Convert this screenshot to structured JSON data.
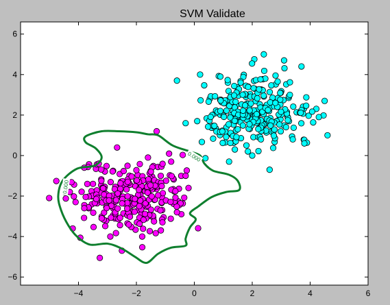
{
  "chart_data": {
    "type": "scatter",
    "title": "SVM Validate",
    "xlabel": "",
    "ylabel": "",
    "xlim": [
      -6,
      6
    ],
    "ylim": [
      -6.4,
      6.6
    ],
    "x_ticks": [
      -4,
      -2,
      0,
      2,
      4,
      6
    ],
    "y_ticks": [
      -6,
      -4,
      -2,
      0,
      2,
      4,
      6
    ],
    "x_tick_labels": [
      "−4",
      "−2",
      "0",
      "2",
      "4",
      "6"
    ],
    "y_tick_labels": [
      "−6",
      "−4",
      "−2",
      "0",
      "2",
      "4",
      "6"
    ],
    "grid": false,
    "legend": false,
    "colors": {
      "figure_background": "#bfbfbf",
      "axes_background": "#ffffff",
      "class_a": "#ff00ff",
      "class_b": "#00ffff",
      "marker_edge": "#000000",
      "boundary": "#0f7f2e"
    },
    "series": [
      {
        "color": "#00ffff",
        "cluster": {
          "center": [
            2.1,
            2.2
          ],
          "spread": [
            0.95,
            0.85
          ],
          "n": 260
        },
        "points": [
          [
            2.4,
            5.0
          ],
          [
            3.1,
            4.7
          ],
          [
            3.7,
            4.4
          ],
          [
            -0.6,
            3.7
          ],
          [
            0.2,
            4.0
          ],
          [
            0.9,
            3.9
          ],
          [
            1.6,
            3.6
          ],
          [
            4.5,
            2.7
          ],
          [
            4.3,
            1.9
          ],
          [
            4.6,
            1.0
          ],
          [
            -0.3,
            1.6
          ],
          [
            0.1,
            1.7
          ],
          [
            1.2,
            -0.3
          ],
          [
            1.4,
            0.3
          ],
          [
            1.8,
            0.5
          ],
          [
            2.0,
            0.0
          ],
          [
            2.6,
            -0.7
          ],
          [
            2.3,
            0.8
          ],
          [
            3.4,
            0.8
          ],
          [
            3.8,
            0.6
          ],
          [
            0.9,
            2.2
          ],
          [
            1.5,
            1.3
          ],
          [
            2.8,
            2.6
          ],
          [
            3.3,
            3.0
          ]
        ]
      },
      {
        "color": "#ff00ff",
        "cluster": {
          "center": [
            -2.1,
            -2.1
          ],
          "spread": [
            0.95,
            0.85
          ],
          "n": 260
        },
        "points": [
          [
            -1.3,
            1.2
          ],
          [
            -0.8,
            -0.3
          ],
          [
            -0.3,
            -1.0
          ],
          [
            -3.8,
            -0.6
          ],
          [
            -3.3,
            -0.4
          ],
          [
            -4.3,
            -1.8
          ],
          [
            -4.1,
            -2.3
          ],
          [
            -4.2,
            -3.6
          ],
          [
            -3.8,
            -2.6
          ],
          [
            -3.2,
            -3.1
          ],
          [
            -2.5,
            -4.7
          ],
          [
            -1.8,
            -4.0
          ],
          [
            -2.9,
            -4.0
          ],
          [
            -1.1,
            -3.3
          ],
          [
            -0.6,
            -2.8
          ],
          [
            -1.5,
            -0.8
          ],
          [
            -2.3,
            -1.3
          ],
          [
            -1.9,
            -2.5
          ],
          [
            -2.7,
            -2.2
          ],
          [
            -0.2,
            -1.6
          ],
          [
            -3.5,
            -1.4
          ],
          [
            -1.6,
            -0.1
          ]
        ]
      }
    ],
    "decision_boundary": [
      [
        -3.75,
        0.95
      ],
      [
        -3.2,
        1.2
      ],
      [
        -2.6,
        1.2
      ],
      [
        -2.0,
        1.15
      ],
      [
        -1.6,
        1.05
      ],
      [
        -1.25,
        1.0
      ],
      [
        -0.75,
        0.5
      ],
      [
        -0.15,
        0.2
      ],
      [
        0.2,
        0.0
      ],
      [
        0.35,
        -0.4
      ],
      [
        0.65,
        -0.75
      ],
      [
        1.2,
        -0.95
      ],
      [
        1.5,
        -1.25
      ],
      [
        1.55,
        -1.7
      ],
      [
        1.1,
        -1.8
      ],
      [
        0.6,
        -2.05
      ],
      [
        0.15,
        -2.5
      ],
      [
        -0.15,
        -2.85
      ],
      [
        0.05,
        -3.15
      ],
      [
        -0.15,
        -3.55
      ],
      [
        -0.3,
        -4.1
      ],
      [
        -0.3,
        -4.45
      ],
      [
        -0.8,
        -4.55
      ],
      [
        -1.25,
        -4.85
      ],
      [
        -1.65,
        -5.3
      ],
      [
        -2.05,
        -5.0
      ],
      [
        -2.5,
        -4.6
      ],
      [
        -3.0,
        -4.35
      ],
      [
        -3.6,
        -4.4
      ],
      [
        -4.05,
        -4.0
      ],
      [
        -4.35,
        -3.45
      ],
      [
        -4.6,
        -2.7
      ],
      [
        -4.7,
        -2.0
      ],
      [
        -4.55,
        -1.25
      ],
      [
        -4.05,
        -0.65
      ],
      [
        -3.45,
        -0.5
      ],
      [
        -3.2,
        -0.1
      ],
      [
        -3.4,
        0.35
      ],
      [
        -3.75,
        0.65
      ]
    ],
    "contour_labels": [
      {
        "text": "0.000",
        "at": [
          0.0,
          -0.05
        ],
        "angle": 32
      },
      {
        "text": "0.000",
        "at": [
          -4.45,
          -1.55
        ],
        "angle": -82
      }
    ]
  }
}
